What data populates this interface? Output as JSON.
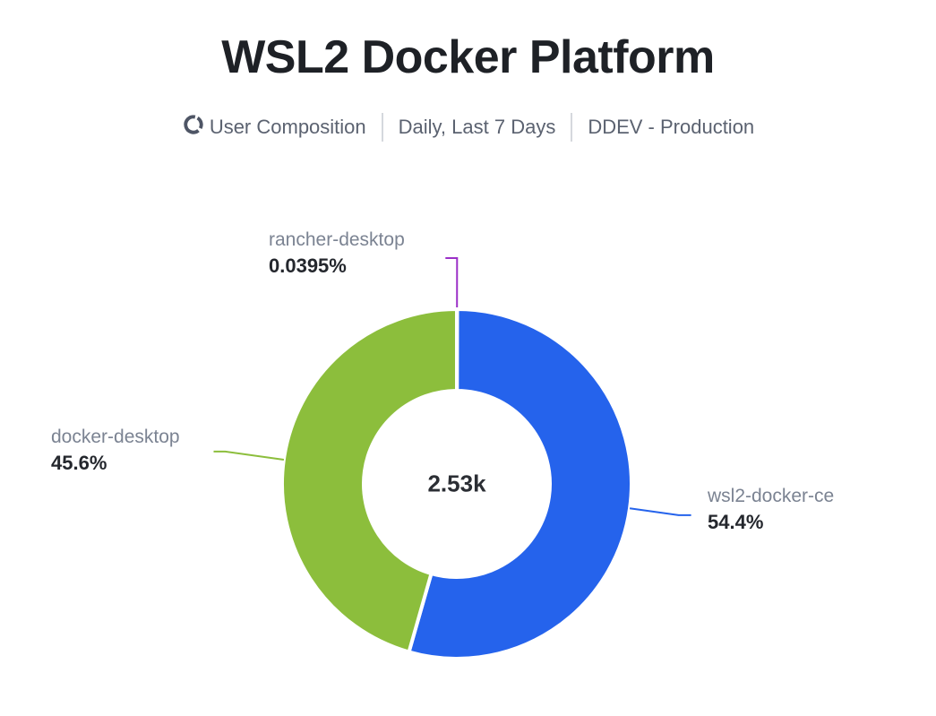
{
  "header": {
    "title": "WSL2 Docker Platform",
    "series_icon": "donut-chart-icon",
    "series_label": "User Composition",
    "period_label": "Daily, Last 7 Days",
    "environment_label": "DDEV - Production"
  },
  "chart_data": {
    "type": "pie",
    "donut": true,
    "title": "WSL2 Docker Platform",
    "subtitle": "User Composition | Daily, Last 7 Days | DDEV - Production",
    "center_total_label": "2.53k",
    "start_angle_deg": 0,
    "clockwise": true,
    "legend_position": "callout-labels",
    "segments": [
      {
        "name": "rancher-desktop",
        "percent": 0.0395,
        "percent_label": "0.0395%",
        "color": "#9b2fc7"
      },
      {
        "name": "wsl2-docker-ce",
        "percent": 54.4,
        "percent_label": "54.4%",
        "color": "#2563ec"
      },
      {
        "name": "docker-desktop",
        "percent": 45.6,
        "percent_label": "45.6%",
        "color": "#8cbe3c"
      }
    ]
  },
  "colors": {
    "title_text": "#1e2126",
    "subtitle_text": "#5b6270",
    "segment_name_text": "#7b8392",
    "segment_percent_text": "#24272d",
    "background": "#ffffff"
  }
}
